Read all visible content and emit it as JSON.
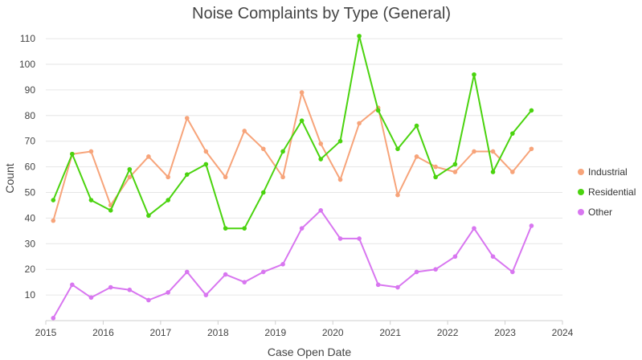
{
  "chart_data": {
    "type": "line",
    "title": "Noise Complaints by Type (General)",
    "xlabel": "Case Open Date",
    "ylabel": "Count",
    "x_range": [
      2015,
      2024
    ],
    "x_ticks": [
      "2015",
      "2016",
      "2017",
      "2018",
      "2019",
      "2020",
      "2021",
      "2022",
      "2023",
      "2024"
    ],
    "ylim": [
      0,
      115
    ],
    "y_ticks": [
      10,
      20,
      30,
      40,
      50,
      60,
      70,
      80,
      90,
      100,
      110
    ],
    "grid": true,
    "legend_position": "right",
    "x": [
      2015.13,
      2015.46,
      2015.79,
      2016.13,
      2016.46,
      2016.79,
      2017.13,
      2017.46,
      2017.79,
      2018.13,
      2018.46,
      2018.79,
      2019.13,
      2019.46,
      2019.79,
      2020.13,
      2020.46,
      2020.79,
      2021.13,
      2021.46,
      2021.79,
      2022.13,
      2022.46,
      2022.79,
      2023.13,
      2023.46
    ],
    "series": [
      {
        "name": "Industrial",
        "color": "#f7a47a",
        "values": [
          39,
          65,
          66,
          45,
          56,
          64,
          56,
          79,
          66,
          56,
          74,
          67,
          56,
          89,
          69,
          55,
          77,
          83,
          49,
          64,
          60,
          58,
          66,
          66,
          58,
          67
        ]
      },
      {
        "name": "Residential",
        "color": "#4ad30e",
        "values": [
          47,
          65,
          47,
          43,
          59,
          41,
          47,
          57,
          61,
          36,
          36,
          50,
          66,
          78,
          63,
          70,
          111,
          82,
          67,
          76,
          56,
          61,
          96,
          58,
          73,
          82
        ]
      },
      {
        "name": "Other",
        "color": "#d876f0",
        "values": [
          1,
          14,
          9,
          13,
          12,
          8,
          11,
          19,
          10,
          18,
          15,
          19,
          22,
          36,
          43,
          32,
          32,
          14,
          13,
          19,
          20,
          25,
          36,
          25,
          19,
          37
        ]
      }
    ]
  }
}
